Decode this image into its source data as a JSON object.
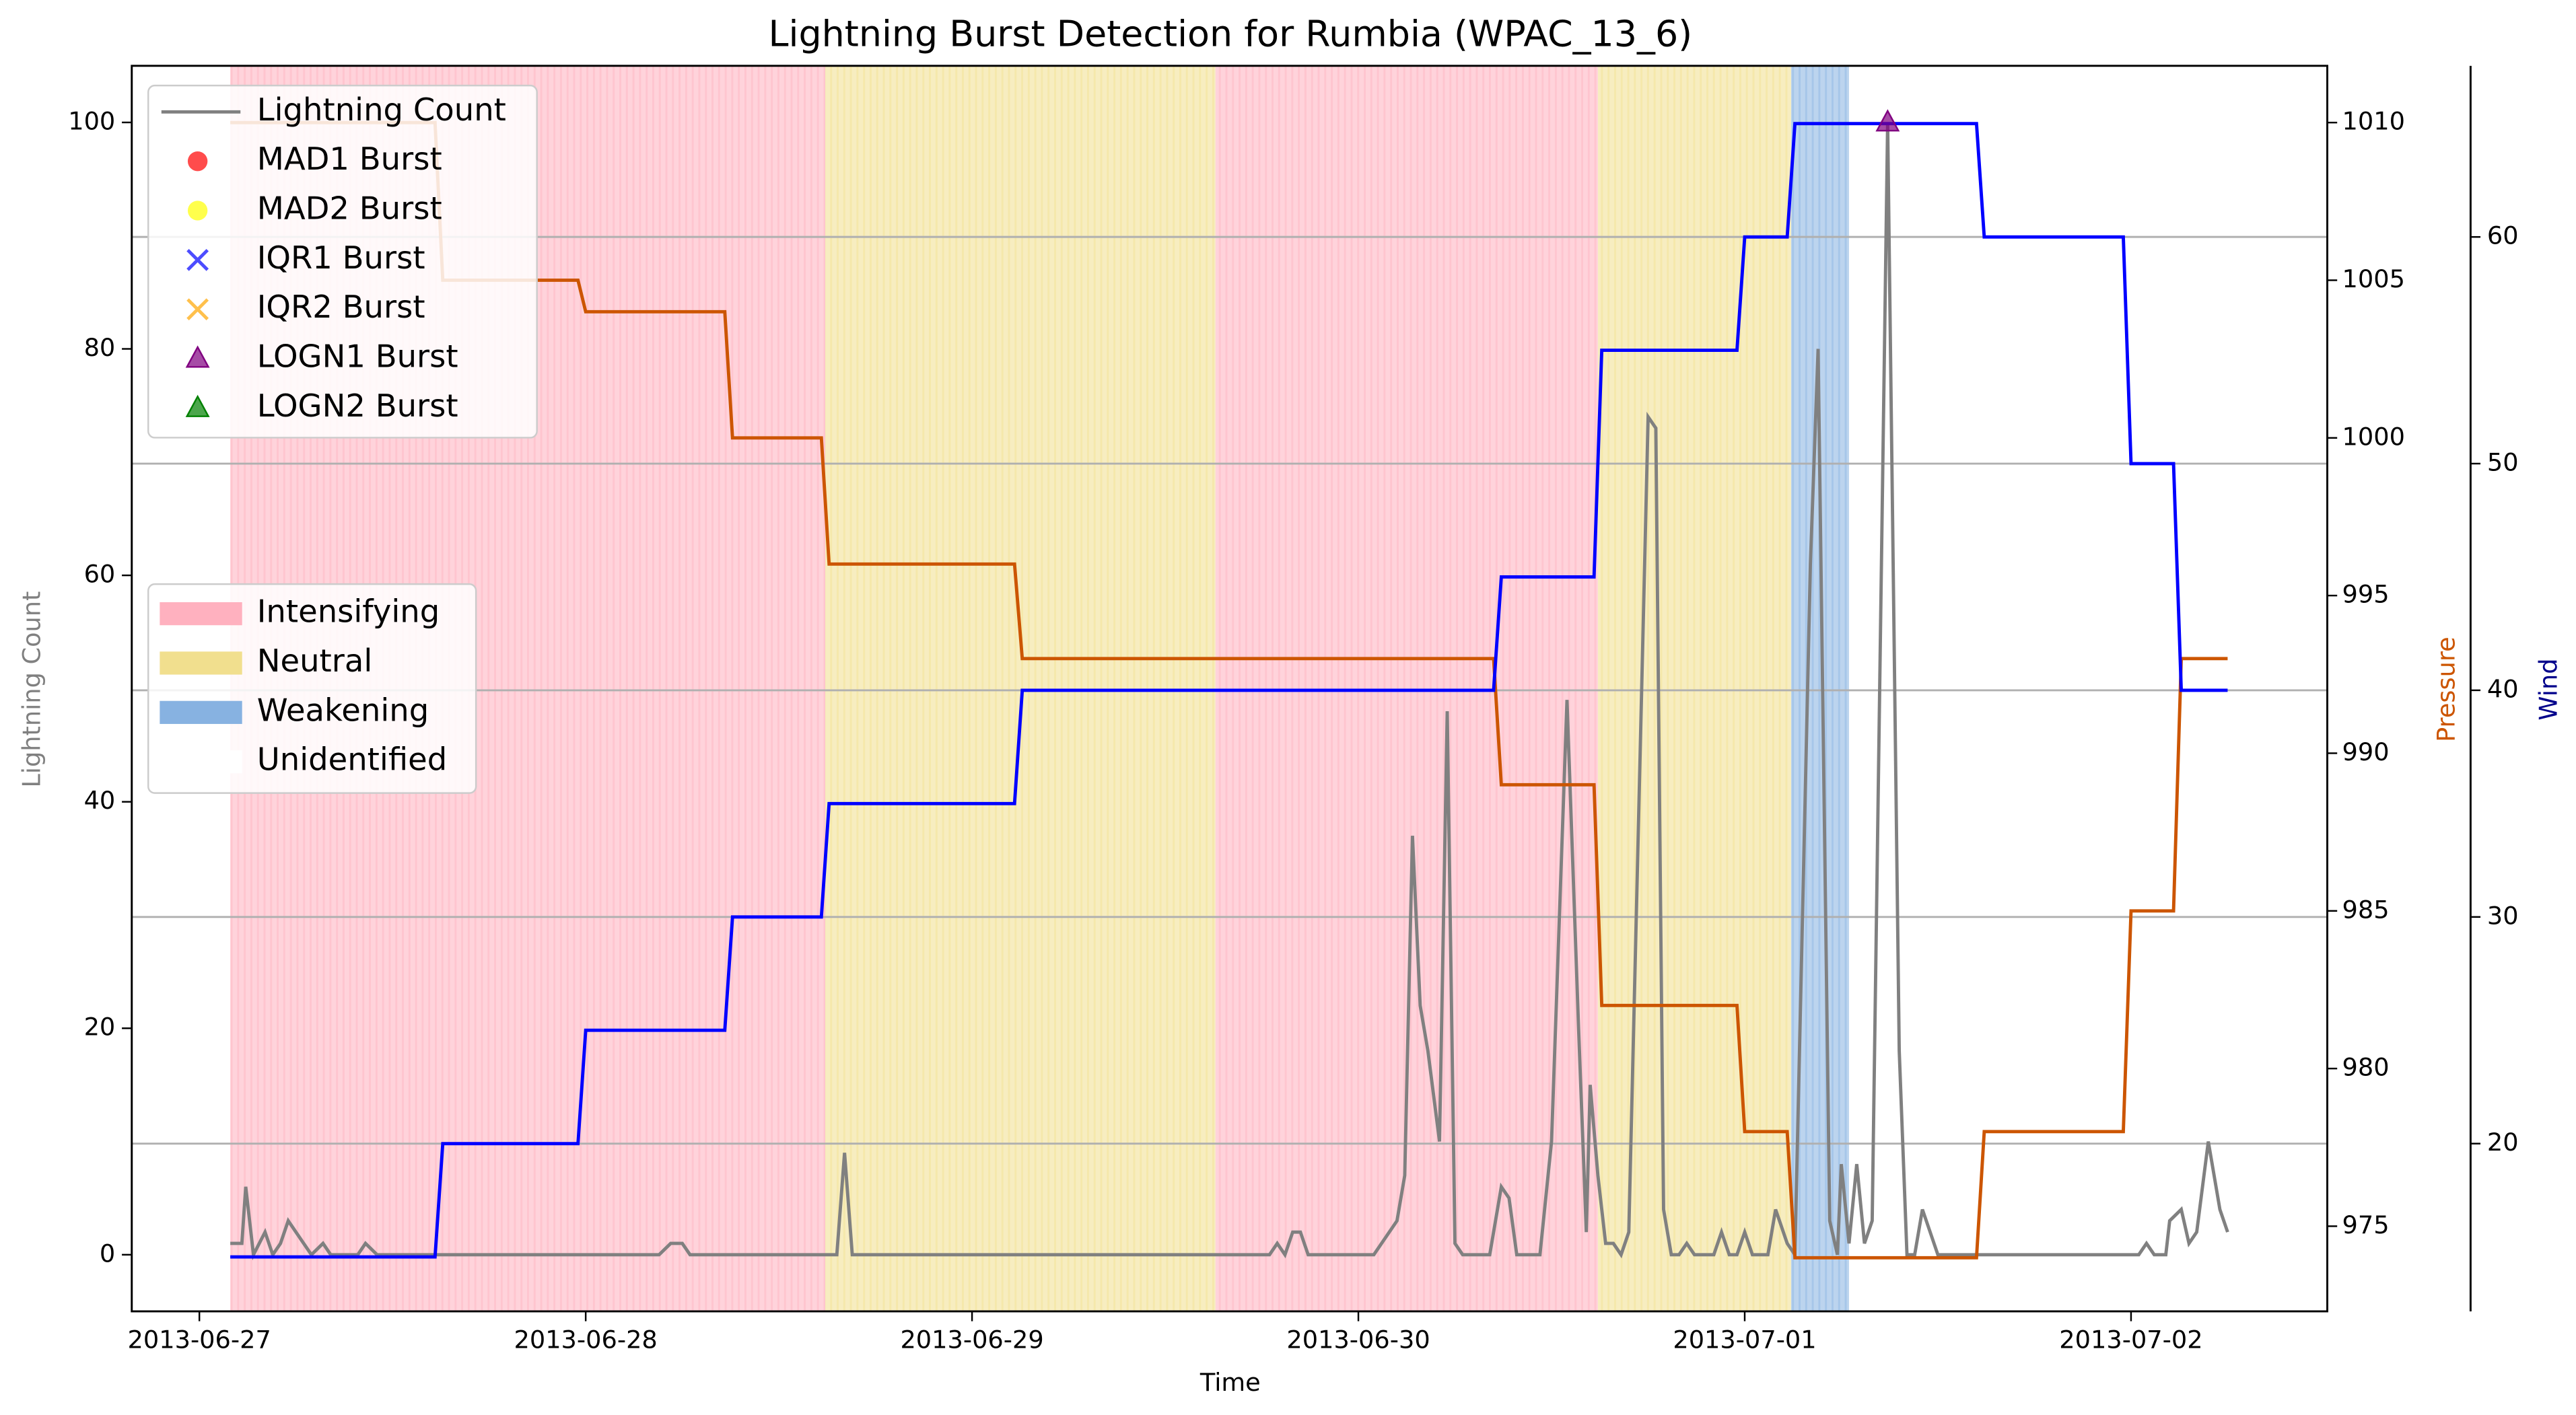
{
  "chart_data": {
    "type": "line",
    "title": "Lightning Burst Detection for Rumbia (WPAC_13_6)",
    "xlabel": "Time",
    "ylabel": "Lightning Count",
    "y2label": "Pressure",
    "y3label": "Wind",
    "xlim": [
      -0.175,
      5.508
    ],
    "xticks": [
      {
        "value": 0,
        "label": "2013-06-27"
      },
      {
        "value": 1,
        "label": "2013-06-28"
      },
      {
        "value": 2,
        "label": "2013-06-29"
      },
      {
        "value": 3,
        "label": "2013-06-30"
      },
      {
        "value": 4,
        "label": "2013-07-01"
      },
      {
        "value": 5,
        "label": "2013-07-02"
      }
    ],
    "ylim": [
      -5,
      105
    ],
    "yticks": [
      0,
      20,
      40,
      60,
      80,
      100
    ],
    "y2lim": [
      972.3,
      1011.8
    ],
    "y2ticks": [
      975,
      980,
      985,
      990,
      995,
      1000,
      1005,
      1010
    ],
    "y3lim": [
      12.6,
      67.55
    ],
    "y3ticks": [
      20,
      30,
      40,
      50,
      60
    ],
    "grid_axis": "y3",
    "y_color": "#808080",
    "y2_color": "#cc5500",
    "y3_color": "#00008b",
    "legend": "upper left",
    "phase_legend_position": "center left",
    "series": [
      {
        "name": "Lightning Count",
        "color": "#808080",
        "axis": "y",
        "x": [
          0.08,
          0.11,
          0.12,
          0.14,
          0.17,
          0.19,
          0.21,
          0.23,
          0.27,
          0.29,
          0.32,
          0.34,
          0.41,
          0.43,
          0.46,
          1.19,
          1.22,
          1.25,
          1.27,
          1.65,
          1.67,
          1.69,
          2.77,
          2.79,
          2.81,
          2.83,
          2.85,
          2.87,
          3.04,
          3.1,
          3.12,
          3.14,
          3.16,
          3.18,
          3.21,
          3.23,
          3.25,
          3.27,
          3.34,
          3.37,
          3.39,
          3.41,
          3.47,
          3.5,
          3.54,
          3.57,
          3.59,
          3.6,
          3.62,
          3.64,
          3.66,
          3.68,
          3.7,
          3.75,
          3.77,
          3.79,
          3.81,
          3.83,
          3.85,
          3.87,
          3.92,
          3.94,
          3.96,
          3.98,
          4.0,
          4.02,
          4.06,
          4.08,
          4.11,
          4.13,
          4.17,
          4.19,
          4.22,
          4.24,
          4.25,
          4.27,
          4.29,
          4.31,
          4.33,
          4.37,
          4.4,
          4.42,
          4.44,
          4.46,
          4.48,
          4.5,
          5.02,
          5.04,
          5.06,
          5.09,
          5.1,
          5.13,
          5.15,
          5.17,
          5.2,
          5.23,
          5.25
        ],
        "values": [
          1,
          1,
          6,
          0,
          2,
          0,
          1,
          3,
          1,
          0,
          1,
          0,
          0,
          1,
          0,
          0,
          1,
          1,
          0,
          0,
          9,
          0,
          0,
          1,
          0,
          2,
          2,
          0,
          0,
          3,
          7,
          37,
          22,
          18,
          10,
          48,
          1,
          0,
          0,
          6,
          5,
          0,
          0,
          10,
          49,
          20,
          2,
          15,
          7,
          1,
          1,
          0,
          2,
          74,
          73,
          4,
          0,
          0,
          1,
          0,
          0,
          2,
          0,
          0,
          2,
          0,
          0,
          4,
          1,
          0,
          61,
          80,
          3,
          0,
          8,
          1,
          8,
          1,
          3,
          100,
          18,
          0,
          0,
          4,
          2,
          0,
          0,
          1,
          0,
          0,
          3,
          4,
          1,
          2,
          10,
          4,
          2
        ]
      },
      {
        "color": "#cc5500",
        "axis": "y2",
        "x": [
          0.08,
          0.61,
          0.63,
          0.98,
          1.0,
          1.36,
          1.38,
          1.61,
          1.63,
          2.11,
          2.13,
          3.35,
          3.37,
          3.61,
          3.63,
          3.98,
          4.0,
          4.11,
          4.13,
          4.6,
          4.62,
          4.98,
          5.0,
          5.11,
          5.13,
          5.25
        ],
        "values": [
          1010,
          1010,
          1005,
          1005,
          1004,
          1004,
          1000,
          1000,
          996,
          996,
          993,
          993,
          989,
          989,
          982,
          982,
          978,
          978,
          974,
          974,
          978,
          978,
          985,
          985,
          993,
          993
        ]
      },
      {
        "color": "#0000ff",
        "axis": "y3",
        "x": [
          0.08,
          0.61,
          0.63,
          0.98,
          1.0,
          1.36,
          1.38,
          1.61,
          1.63,
          2.11,
          2.13,
          3.35,
          3.37,
          3.61,
          3.63,
          3.98,
          4.0,
          4.11,
          4.13,
          4.6,
          4.62,
          4.98,
          5.0,
          5.11,
          5.13,
          5.25
        ],
        "values": [
          15,
          15,
          20,
          20,
          25,
          25,
          30,
          30,
          35,
          35,
          40,
          40,
          45,
          45,
          55,
          55,
          60,
          60,
          65,
          65,
          60,
          60,
          50,
          50,
          40,
          40
        ]
      }
    ],
    "bursts": [
      {
        "name": "MAD1 Burst",
        "color": "#ff0000",
        "marker": "circle",
        "x": [],
        "values": []
      },
      {
        "name": "MAD2 Burst",
        "color": "#ffff00",
        "marker": "circle",
        "x": [],
        "values": []
      },
      {
        "name": "IQR1 Burst",
        "color": "#0000ff",
        "marker": "x",
        "x": [],
        "values": []
      },
      {
        "name": "IQR2 Burst",
        "color": "#ffa500",
        "marker": "x",
        "x": [],
        "values": []
      },
      {
        "name": "LOGN1 Burst",
        "color": "#800080",
        "marker": "triangle",
        "x": [
          4.37
        ],
        "values": [
          100
        ]
      },
      {
        "name": "LOGN2 Burst",
        "color": "#008000",
        "marker": "triangle",
        "x": [],
        "values": []
      }
    ],
    "phases": [
      {
        "name": "Intensifying",
        "color": "#ffa8b8",
        "spans": [
          [
            0.08,
            1.62
          ],
          [
            2.63,
            3.62
          ]
        ]
      },
      {
        "name": "Neutral",
        "color": "#f0dc82",
        "spans": [
          [
            1.62,
            2.63
          ],
          [
            3.62,
            4.12
          ]
        ]
      },
      {
        "name": "Weakening",
        "color": "#7aaade",
        "spans": [
          [
            4.12,
            4.27
          ]
        ]
      },
      {
        "name": "Unidentified",
        "color": "#ffffff",
        "spans": []
      }
    ]
  }
}
